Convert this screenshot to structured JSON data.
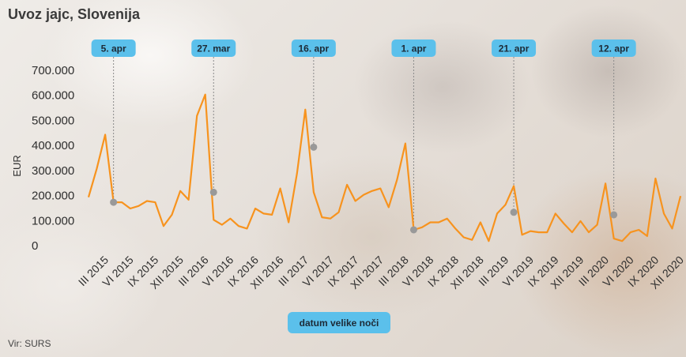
{
  "title": "Uvoz jajc, Slovenija",
  "source": "Vir: SURS",
  "chart_data": {
    "type": "line",
    "ylabel": "EUR",
    "xlabel": "datum velike noči",
    "ylim": [
      0,
      700000
    ],
    "yticks": [
      0,
      100000,
      200000,
      300000,
      400000,
      500000,
      600000,
      700000
    ],
    "ytick_labels": [
      "0",
      "100.000",
      "200.000",
      "300.000",
      "400.000",
      "500.000",
      "600.000",
      "700.000"
    ],
    "xtick_labels": [
      "III 2015",
      "VI 2015",
      "IX 2015",
      "XII 2015",
      "III 2016",
      "VI 2016",
      "IX 2016",
      "XII 2016",
      "III 2017",
      "VI 2017",
      "IX 2017",
      "XII 2017",
      "III 2018",
      "VI 2018",
      "IX 2018",
      "XII 2018",
      "III 2019",
      "VI 2019",
      "IX 2019",
      "XII 2019",
      "III 2020",
      "VI 2020",
      "IX 2020",
      "XII 2020"
    ],
    "line_color": "#f7931e",
    "series": [
      {
        "values": [
          190000,
          305000,
          440000,
          170000,
          170000,
          145000,
          155000,
          175000,
          170000,
          75000,
          120000,
          215000,
          180000,
          515000,
          600000,
          100000,
          80000,
          105000,
          75000,
          65000,
          145000,
          125000,
          120000,
          225000,
          90000,
          285000,
          540000,
          210000,
          110000,
          105000,
          130000,
          240000,
          175000,
          200000,
          215000,
          225000,
          150000,
          260000,
          405000,
          60000,
          70000,
          90000,
          90000,
          105000,
          65000,
          30000,
          20000,
          90000,
          15000,
          125000,
          160000,
          235000,
          40000,
          55000,
          50000,
          50000,
          125000,
          85000,
          50000,
          95000,
          50000,
          80000,
          245000,
          25000,
          15000,
          50000,
          60000,
          35000,
          265000,
          125000,
          65000,
          195000
        ]
      }
    ],
    "easter_markers": [
      {
        "label": "5. apr",
        "index": 3,
        "value": 170000
      },
      {
        "label": "27. mar",
        "index": 15,
        "value": 210000
      },
      {
        "label": "16. apr",
        "index": 27,
        "value": 390000
      },
      {
        "label": "1. apr",
        "index": 39,
        "value": 60000
      },
      {
        "label": "21. apr",
        "index": 51,
        "value": 130000
      },
      {
        "label": "12. apr",
        "index": 63,
        "value": 120000
      }
    ],
    "pill_color": "#5bc0eb",
    "marker_color": "#999999"
  }
}
